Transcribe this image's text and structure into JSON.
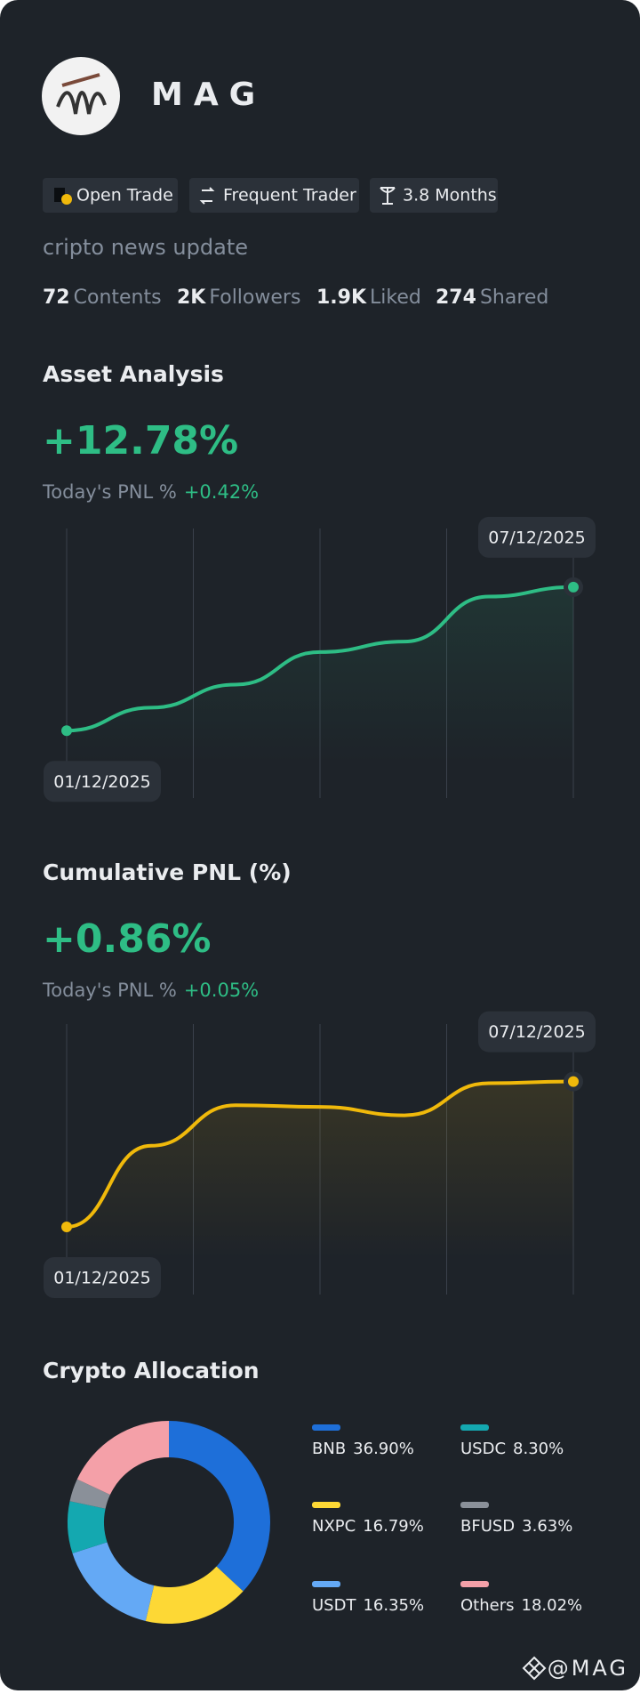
{
  "profile": {
    "name": "MAG",
    "tags": [
      "Open Trade",
      "Frequent Trader",
      "3.8 Months"
    ],
    "bio": "cripto news update",
    "stats": [
      {
        "value": "72",
        "label": "Contents"
      },
      {
        "value": "2K",
        "label": "Followers"
      },
      {
        "value": "1.9K",
        "label": "Liked"
      },
      {
        "value": "274",
        "label": "Shared"
      }
    ]
  },
  "chart_data": [
    {
      "type": "line",
      "title": "Asset Analysis",
      "headline": "+12.78%",
      "pnl_label": "Today's PNL %",
      "pnl_value": "+0.42%",
      "categories": [
        "01/12/2025",
        null,
        null,
        null,
        null,
        null,
        "07/12/2025"
      ],
      "series": [
        {
          "color": "#2ebd85",
          "values": [
            0,
            2.05,
            4.1,
            7.0,
            7.93,
            11.94,
            12.78
          ]
        }
      ],
      "ylim": [
        -6,
        18
      ]
    },
    {
      "type": "line",
      "title": "Cumulative PNL (%)",
      "headline": "+0.86%",
      "pnl_label": "Today's PNL %",
      "pnl_value": "+0.05%",
      "categories": [
        "01/12/2025",
        null,
        null,
        null,
        null,
        null,
        "07/12/2025"
      ],
      "series": [
        {
          "color": "#f0b90b",
          "values": [
            0,
            0.48,
            0.72,
            0.71,
            0.66,
            0.85,
            0.86
          ]
        }
      ],
      "ylim": [
        -0.4,
        1.2
      ]
    },
    {
      "type": "donut",
      "title": "Crypto Allocation",
      "categories": [
        "BNB",
        "NXPC",
        "USDT",
        "USDC",
        "BFUSD",
        "Others"
      ],
      "values": [
        36.9,
        16.79,
        16.35,
        8.3,
        3.63,
        18.02
      ],
      "value_labels": [
        "36.90%",
        "16.79%",
        "16.35%",
        "8.30%",
        "3.63%",
        "18.02%"
      ],
      "colors": [
        "#1e6fd9",
        "#fdd835",
        "#64a9f5",
        "#14a8b0",
        "#8a9099",
        "#f4a0a8"
      ]
    }
  ],
  "footer": "@MAG"
}
